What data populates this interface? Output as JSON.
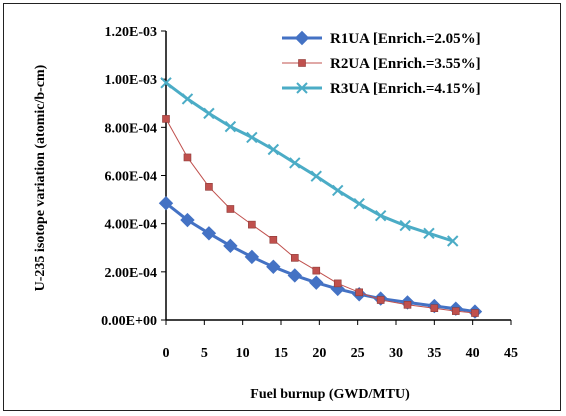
{
  "chart_data": {
    "type": "line",
    "title": "",
    "xlabel": "Fuel burnup (GWD/MTU)",
    "ylabel": "U-235 isotope variation (atomic/b-cm)",
    "xlim": [
      0,
      45
    ],
    "ylim": [
      0,
      0.0012
    ],
    "x_ticks": [
      "0",
      "5",
      "10",
      "15",
      "20",
      "25",
      "30",
      "35",
      "40",
      "45"
    ],
    "y_ticks": [
      "0.00E+00",
      "2.00E-04",
      "4.00E-04",
      "6.00E-04",
      "8.00E-04",
      "1.00E-03",
      "1.20E-03"
    ],
    "grid": false,
    "legend_position": "top-right",
    "series": [
      {
        "name": "R1UA [Enrich.=2.05%]",
        "color": "#4472C4",
        "marker": "diamond",
        "x": [
          0,
          2.8,
          5.6,
          8.4,
          11.2,
          14,
          16.8,
          19.6,
          22.4,
          25.2,
          28,
          31.5,
          35,
          37.8,
          40.3
        ],
        "y": [
          0.000485,
          0.000415,
          0.00036,
          0.000308,
          0.000262,
          0.000221,
          0.000185,
          0.000155,
          0.000129,
          0.000107,
          8.9e-05,
          7.3e-05,
          5.8e-05,
          4.7e-05,
          3.5e-05
        ]
      },
      {
        "name": "R2UA [Enrich.=3.55%]",
        "color": "#C0504D",
        "marker": "square",
        "x": [
          0,
          2.8,
          5.6,
          8.4,
          11.2,
          14,
          16.8,
          19.6,
          22.4,
          25.2,
          28,
          31.5,
          35,
          37.8,
          40.3
        ],
        "y": [
          0.000835,
          0.000675,
          0.000553,
          0.000461,
          0.000396,
          0.000333,
          0.000258,
          0.000205,
          0.000152,
          0.000115,
          8.3e-05,
          6.3e-05,
          4.9e-05,
          3.7e-05,
          2.9e-05
        ]
      },
      {
        "name": "R3UA [Enrich.=4.15%]",
        "color": "#4BACC6",
        "marker": "x",
        "x": [
          0,
          2.8,
          5.6,
          8.4,
          11.2,
          14,
          16.8,
          19.6,
          22.4,
          25.2,
          28,
          31.2,
          34.3,
          37.4
        ],
        "y": [
          0.000985,
          0.000918,
          0.000858,
          0.000803,
          0.000758,
          0.000708,
          0.000652,
          0.000597,
          0.000538,
          0.000483,
          0.000433,
          0.000392,
          0.00036,
          0.000328
        ]
      }
    ]
  }
}
